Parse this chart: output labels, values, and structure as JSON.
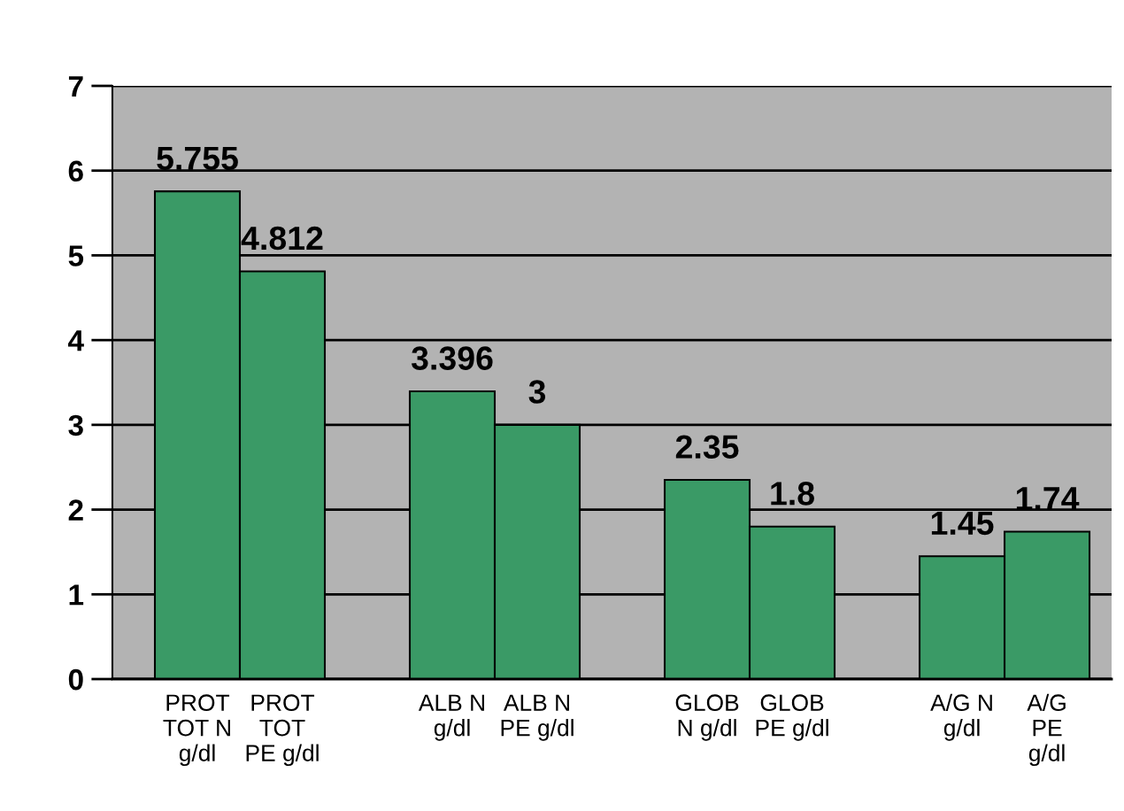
{
  "chart_data": {
    "type": "bar",
    "categories": [
      "PROT\nTOT N\ng/dl",
      "PROT\nTOT\nPE g/dl",
      null,
      "ALB N\ng/dl",
      "ALB N\nPE g/dl",
      null,
      "GLOB\nN g/dl",
      "GLOB\nPE g/dl",
      null,
      "A/G N\ng/dl",
      "A/G\nPE\ng/dl"
    ],
    "values": [
      5.755,
      4.812,
      null,
      3.396,
      3,
      null,
      2.35,
      1.8,
      null,
      1.45,
      1.74
    ],
    "color": "#3a9a66",
    "ylim": [
      0,
      7
    ],
    "yticks": [
      0,
      1,
      2,
      3,
      4,
      5,
      6,
      7
    ],
    "grid": "y",
    "data_labels": true
  }
}
